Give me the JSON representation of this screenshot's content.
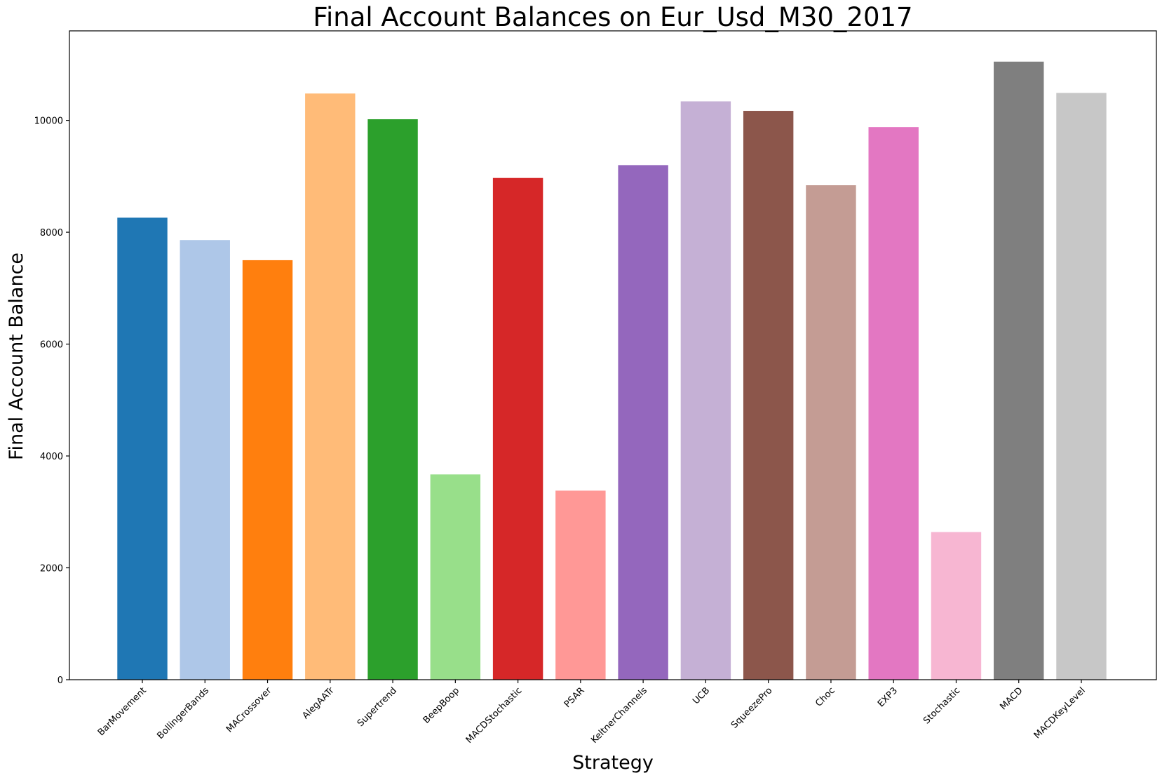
{
  "chart_data": {
    "type": "bar",
    "title": "Final Account Balances on Eur_Usd_M30_2017",
    "xlabel": "Strategy",
    "ylabel": "Final Account Balance",
    "ylim": [
      0,
      11600
    ],
    "yticks": [
      0,
      2000,
      4000,
      6000,
      8000,
      10000
    ],
    "grid": false,
    "legend": "none",
    "categories": [
      "BarMovement",
      "BollingerBands",
      "MACrossover",
      "AlegAATr",
      "Supertrend",
      "BeepBoop",
      "MACDStochastic",
      "PSAR",
      "KeltnerChannels",
      "UCB",
      "SqueezePro",
      "Choc",
      "EXP3",
      "Stochastic",
      "MACD",
      "MACDKeyLevel"
    ],
    "values": [
      8260,
      7860,
      7500,
      10480,
      10020,
      3670,
      8970,
      3380,
      9200,
      10340,
      10170,
      8840,
      9880,
      2640,
      11050,
      10490
    ],
    "colors": [
      "#1f77b4",
      "#aec7e8",
      "#ff7f0e",
      "#ffbb78",
      "#2ca02c",
      "#98df8a",
      "#d62728",
      "#ff9896",
      "#9467bd",
      "#c5b0d5",
      "#8c564b",
      "#c49c94",
      "#e377c2",
      "#f7b6d2",
      "#7f7f7f",
      "#c7c7c7"
    ]
  }
}
